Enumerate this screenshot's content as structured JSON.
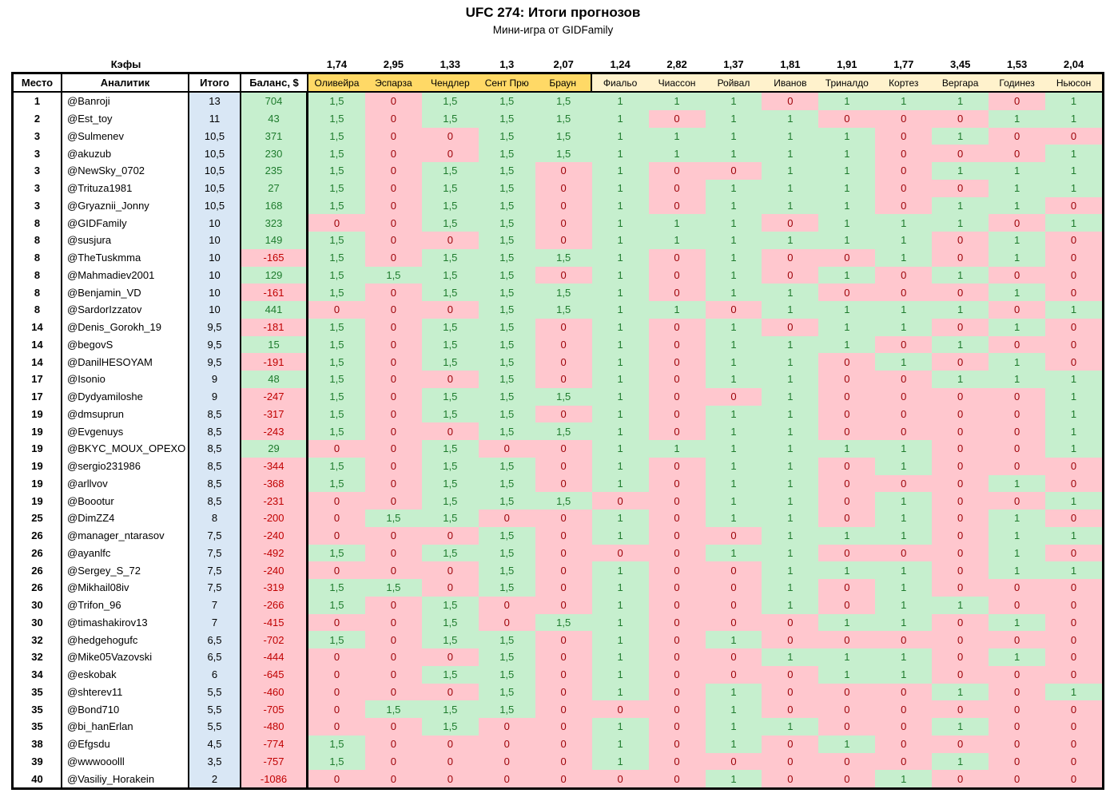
{
  "title": "UFC 274: Итоги прогнозов",
  "subtitle": "Мини-игра от GIDFamily",
  "odds_label": "Кэфы",
  "odds": [
    "1,74",
    "2,95",
    "1,33",
    "1,3",
    "2,07",
    "1,24",
    "2,82",
    "1,37",
    "1,81",
    "1,91",
    "1,77",
    "3,45",
    "1,53",
    "2,04"
  ],
  "columns": {
    "place": "Место",
    "analyst": "Аналитик",
    "total": "Итого",
    "balance": "Баланс, $"
  },
  "fighters": [
    "Оливейра",
    "Эспарза",
    "Чендлер",
    "Сент Прю",
    "Браун",
    "Фиальо",
    "Чиассон",
    "Ройвал",
    "Иванов",
    "Триналдо",
    "Кортез",
    "Вергара",
    "Годинез",
    "Ньюсон"
  ],
  "fighters_group1_count": 5,
  "colors": {
    "correct_bg": "#C6EFCE",
    "correct_text": "#1E7B2D",
    "wrong_bg": "#FFC7CE",
    "wrong_text": "#9C0006",
    "total_col_bg": "#D9E7F5",
    "balance_neg_text": "#C00000",
    "header_group1_bg": "#FFD966",
    "header_group2_bg": "#FFF2CC"
  },
  "rows": [
    {
      "place": "1",
      "analyst": "@Banroji",
      "total": "13",
      "balance": "704",
      "picks": [
        "1,5",
        "0",
        "1,5",
        "1,5",
        "1,5",
        "1",
        "1",
        "1",
        "0",
        "1",
        "1",
        "1",
        "0",
        "1"
      ]
    },
    {
      "place": "2",
      "analyst": "@Est_toy",
      "total": "11",
      "balance": "43",
      "picks": [
        "1,5",
        "0",
        "1,5",
        "1,5",
        "1,5",
        "1",
        "0",
        "1",
        "1",
        "0",
        "0",
        "0",
        "1",
        "1"
      ]
    },
    {
      "place": "3",
      "analyst": "@Sulmenev",
      "total": "10,5",
      "balance": "371",
      "picks": [
        "1,5",
        "0",
        "0",
        "1,5",
        "1,5",
        "1",
        "1",
        "1",
        "1",
        "1",
        "0",
        "1",
        "0",
        "0"
      ]
    },
    {
      "place": "3",
      "analyst": "@akuzub",
      "total": "10,5",
      "balance": "230",
      "picks": [
        "1,5",
        "0",
        "0",
        "1,5",
        "1,5",
        "1",
        "1",
        "1",
        "1",
        "1",
        "0",
        "0",
        "0",
        "1"
      ]
    },
    {
      "place": "3",
      "analyst": "@NewSky_0702",
      "total": "10,5",
      "balance": "235",
      "picks": [
        "1,5",
        "0",
        "1,5",
        "1,5",
        "0",
        "1",
        "0",
        "0",
        "1",
        "1",
        "0",
        "1",
        "1",
        "1"
      ]
    },
    {
      "place": "3",
      "analyst": "@Trituza1981",
      "total": "10,5",
      "balance": "27",
      "picks": [
        "1,5",
        "0",
        "1,5",
        "1,5",
        "0",
        "1",
        "0",
        "1",
        "1",
        "1",
        "0",
        "0",
        "1",
        "1"
      ]
    },
    {
      "place": "3",
      "analyst": "@Gryaznii_Jonny",
      "total": "10,5",
      "balance": "168",
      "picks": [
        "1,5",
        "0",
        "1,5",
        "1,5",
        "0",
        "1",
        "0",
        "1",
        "1",
        "1",
        "0",
        "1",
        "1",
        "0"
      ]
    },
    {
      "place": "8",
      "analyst": "@GIDFamily",
      "total": "10",
      "balance": "323",
      "picks": [
        "0",
        "0",
        "1,5",
        "1,5",
        "0",
        "1",
        "1",
        "1",
        "0",
        "1",
        "1",
        "1",
        "0",
        "1"
      ]
    },
    {
      "place": "8",
      "analyst": "@susjura",
      "total": "10",
      "balance": "149",
      "picks": [
        "1,5",
        "0",
        "0",
        "1,5",
        "0",
        "1",
        "1",
        "1",
        "1",
        "1",
        "1",
        "0",
        "1",
        "0"
      ]
    },
    {
      "place": "8",
      "analyst": "@TheTuskmma",
      "total": "10",
      "balance": "-165",
      "picks": [
        "1,5",
        "0",
        "1,5",
        "1,5",
        "1,5",
        "1",
        "0",
        "1",
        "0",
        "0",
        "1",
        "0",
        "1",
        "0"
      ]
    },
    {
      "place": "8",
      "analyst": "@Mahmadiev2001",
      "total": "10",
      "balance": "129",
      "picks": [
        "1,5",
        "1,5",
        "1,5",
        "1,5",
        "0",
        "1",
        "0",
        "1",
        "0",
        "1",
        "0",
        "1",
        "0",
        "0"
      ]
    },
    {
      "place": "8",
      "analyst": "@Benjamin_VD",
      "total": "10",
      "balance": "-161",
      "picks": [
        "1,5",
        "0",
        "1,5",
        "1,5",
        "1,5",
        "1",
        "0",
        "1",
        "1",
        "0",
        "0",
        "0",
        "1",
        "0"
      ]
    },
    {
      "place": "8",
      "analyst": "@SardorIzzatov",
      "total": "10",
      "balance": "441",
      "picks": [
        "0",
        "0",
        "0",
        "1,5",
        "1,5",
        "1",
        "1",
        "0",
        "1",
        "1",
        "1",
        "1",
        "0",
        "1"
      ]
    },
    {
      "place": "14",
      "analyst": "@Denis_Gorokh_19",
      "total": "9,5",
      "balance": "-181",
      "picks": [
        "1,5",
        "0",
        "1,5",
        "1,5",
        "0",
        "1",
        "0",
        "1",
        "0",
        "1",
        "1",
        "0",
        "1",
        "0"
      ]
    },
    {
      "place": "14",
      "analyst": "@begovS",
      "total": "9,5",
      "balance": "15",
      "picks": [
        "1,5",
        "0",
        "1,5",
        "1,5",
        "0",
        "1",
        "0",
        "1",
        "1",
        "1",
        "0",
        "1",
        "0",
        "0"
      ]
    },
    {
      "place": "14",
      "analyst": "@DanilHESOYAM",
      "total": "9,5",
      "balance": "-191",
      "picks": [
        "1,5",
        "0",
        "1,5",
        "1,5",
        "0",
        "1",
        "0",
        "1",
        "1",
        "0",
        "1",
        "0",
        "1",
        "0"
      ]
    },
    {
      "place": "17",
      "analyst": "@Isonio",
      "total": "9",
      "balance": "48",
      "picks": [
        "1,5",
        "0",
        "0",
        "1,5",
        "0",
        "1",
        "0",
        "1",
        "1",
        "0",
        "0",
        "1",
        "1",
        "1"
      ]
    },
    {
      "place": "17",
      "analyst": "@Dydyamiloshe",
      "total": "9",
      "balance": "-247",
      "picks": [
        "1,5",
        "0",
        "1,5",
        "1,5",
        "1,5",
        "1",
        "0",
        "0",
        "1",
        "0",
        "0",
        "0",
        "0",
        "1"
      ]
    },
    {
      "place": "19",
      "analyst": "@dmsuprun",
      "total": "8,5",
      "balance": "-317",
      "picks": [
        "1,5",
        "0",
        "1,5",
        "1,5",
        "0",
        "1",
        "0",
        "1",
        "1",
        "0",
        "0",
        "0",
        "0",
        "1"
      ]
    },
    {
      "place": "19",
      "analyst": "@Evgenuys",
      "total": "8,5",
      "balance": "-243",
      "picks": [
        "1,5",
        "0",
        "0",
        "1,5",
        "1,5",
        "1",
        "0",
        "1",
        "1",
        "0",
        "0",
        "0",
        "0",
        "1"
      ]
    },
    {
      "place": "19",
      "analyst": "@BKYC_MOUX_OPEXO",
      "total": "8,5",
      "balance": "29",
      "picks": [
        "0",
        "0",
        "1,5",
        "0",
        "0",
        "1",
        "1",
        "1",
        "1",
        "1",
        "1",
        "0",
        "0",
        "1"
      ]
    },
    {
      "place": "19",
      "analyst": "@sergio231986",
      "total": "8,5",
      "balance": "-344",
      "picks": [
        "1,5",
        "0",
        "1,5",
        "1,5",
        "0",
        "1",
        "0",
        "1",
        "1",
        "0",
        "1",
        "0",
        "0",
        "0"
      ]
    },
    {
      "place": "19",
      "analyst": "@arllvov",
      "total": "8,5",
      "balance": "-368",
      "picks": [
        "1,5",
        "0",
        "1,5",
        "1,5",
        "0",
        "1",
        "0",
        "1",
        "1",
        "0",
        "0",
        "0",
        "1",
        "0"
      ]
    },
    {
      "place": "19",
      "analyst": "@Boootur",
      "total": "8,5",
      "balance": "-231",
      "picks": [
        "0",
        "0",
        "1,5",
        "1,5",
        "1,5",
        "0",
        "0",
        "1",
        "1",
        "0",
        "1",
        "0",
        "0",
        "1"
      ]
    },
    {
      "place": "25",
      "analyst": "@DimZZ4",
      "total": "8",
      "balance": "-200",
      "picks": [
        "0",
        "1,5",
        "1,5",
        "0",
        "0",
        "1",
        "0",
        "1",
        "1",
        "0",
        "1",
        "0",
        "1",
        "0"
      ]
    },
    {
      "place": "26",
      "analyst": "@manager_ntarasov",
      "total": "7,5",
      "balance": "-240",
      "picks": [
        "0",
        "0",
        "0",
        "1,5",
        "0",
        "1",
        "0",
        "0",
        "1",
        "1",
        "1",
        "0",
        "1",
        "1"
      ]
    },
    {
      "place": "26",
      "analyst": "@ayanlfc",
      "total": "7,5",
      "balance": "-492",
      "picks": [
        "1,5",
        "0",
        "1,5",
        "1,5",
        "0",
        "0",
        "0",
        "1",
        "1",
        "0",
        "0",
        "0",
        "1",
        "0"
      ]
    },
    {
      "place": "26",
      "analyst": "@Sergey_S_72",
      "total": "7,5",
      "balance": "-240",
      "picks": [
        "0",
        "0",
        "0",
        "1,5",
        "0",
        "1",
        "0",
        "0",
        "1",
        "1",
        "1",
        "0",
        "1",
        "1"
      ]
    },
    {
      "place": "26",
      "analyst": "@Mikhail08iv",
      "total": "7,5",
      "balance": "-319",
      "picks": [
        "1,5",
        "1,5",
        "0",
        "1,5",
        "0",
        "1",
        "0",
        "0",
        "1",
        "0",
        "1",
        "0",
        "0",
        "0"
      ]
    },
    {
      "place": "30",
      "analyst": "@Trifon_96",
      "total": "7",
      "balance": "-266",
      "picks": [
        "1,5",
        "0",
        "1,5",
        "0",
        "0",
        "1",
        "0",
        "0",
        "1",
        "0",
        "1",
        "1",
        "0",
        "0"
      ]
    },
    {
      "place": "30",
      "analyst": "@timashakirov13",
      "total": "7",
      "balance": "-415",
      "picks": [
        "0",
        "0",
        "1,5",
        "0",
        "1,5",
        "1",
        "0",
        "0",
        "0",
        "1",
        "1",
        "0",
        "1",
        "0"
      ]
    },
    {
      "place": "32",
      "analyst": "@hedgehogufc",
      "total": "6,5",
      "balance": "-702",
      "picks": [
        "1,5",
        "0",
        "1,5",
        "1,5",
        "0",
        "1",
        "0",
        "1",
        "0",
        "0",
        "0",
        "0",
        "0",
        "0"
      ]
    },
    {
      "place": "32",
      "analyst": "@Mike05Vazovski",
      "total": "6,5",
      "balance": "-444",
      "picks": [
        "0",
        "0",
        "0",
        "1,5",
        "0",
        "1",
        "0",
        "0",
        "1",
        "1",
        "1",
        "0",
        "1",
        "0"
      ]
    },
    {
      "place": "34",
      "analyst": "@eskobak",
      "total": "6",
      "balance": "-645",
      "picks": [
        "0",
        "0",
        "1,5",
        "1,5",
        "0",
        "1",
        "0",
        "0",
        "0",
        "1",
        "1",
        "0",
        "0",
        "0"
      ]
    },
    {
      "place": "35",
      "analyst": "@shterev11",
      "total": "5,5",
      "balance": "-460",
      "picks": [
        "0",
        "0",
        "0",
        "1,5",
        "0",
        "1",
        "0",
        "1",
        "0",
        "0",
        "0",
        "1",
        "0",
        "1"
      ]
    },
    {
      "place": "35",
      "analyst": "@Bond710",
      "total": "5,5",
      "balance": "-705",
      "picks": [
        "0",
        "1,5",
        "1,5",
        "1,5",
        "0",
        "0",
        "0",
        "1",
        "0",
        "0",
        "0",
        "0",
        "0",
        "0"
      ]
    },
    {
      "place": "35",
      "analyst": "@bi_hanErlan",
      "total": "5,5",
      "balance": "-480",
      "picks": [
        "0",
        "0",
        "1,5",
        "0",
        "0",
        "1",
        "0",
        "1",
        "1",
        "0",
        "0",
        "1",
        "0",
        "0"
      ]
    },
    {
      "place": "38",
      "analyst": "@Efgsdu",
      "total": "4,5",
      "balance": "-774",
      "picks": [
        "1,5",
        "0",
        "0",
        "0",
        "0",
        "1",
        "0",
        "1",
        "0",
        "1",
        "0",
        "0",
        "0",
        "0"
      ]
    },
    {
      "place": "39",
      "analyst": "@wwwooolll",
      "total": "3,5",
      "balance": "-757",
      "picks": [
        "1,5",
        "0",
        "0",
        "0",
        "0",
        "1",
        "0",
        "0",
        "0",
        "0",
        "0",
        "1",
        "0",
        "0"
      ]
    },
    {
      "place": "40",
      "analyst": "@Vasiliy_Horakein",
      "total": "2",
      "balance": "-1086",
      "picks": [
        "0",
        "0",
        "0",
        "0",
        "0",
        "0",
        "0",
        "1",
        "0",
        "0",
        "1",
        "0",
        "0",
        "0"
      ]
    }
  ]
}
